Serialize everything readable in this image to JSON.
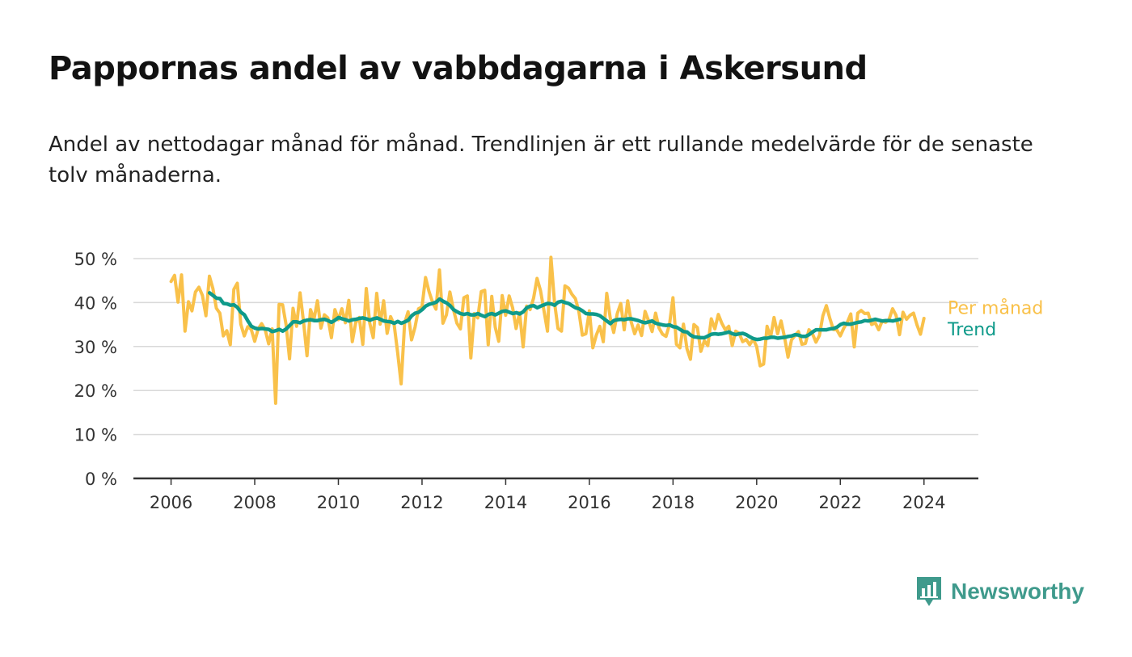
{
  "header": {
    "title": "Pappornas andel av vabbdagarna i Askersund",
    "subtitle": "Andel av nettodagar månad för månad. Trendlinjen är ett rullande medelvärde för de senaste tolv månaderna."
  },
  "brand": {
    "name": "Newsworthy",
    "color": "#3f9a8c",
    "icon": "newsworthy-logo-icon"
  },
  "colors": {
    "monthly": "#f9c14a",
    "trend": "#0f9a8a",
    "grid": "#d9d9d9",
    "axis": "#333333"
  },
  "chart_data": {
    "type": "line",
    "title": "Pappornas andel av vabbdagarna i Askersund",
    "x_unit": "year",
    "xlim": [
      2005.1,
      2025.3
    ],
    "ylim": [
      0,
      50
    ],
    "yticks": [
      0,
      10,
      20,
      30,
      40,
      50
    ],
    "ytick_labels": [
      "0 %",
      "10 %",
      "20 %",
      "30 %",
      "40 %",
      "50 %"
    ],
    "xticks": [
      2006,
      2008,
      2010,
      2012,
      2014,
      2016,
      2018,
      2020,
      2022,
      2024
    ],
    "xtick_labels": [
      "2006",
      "2008",
      "2010",
      "2012",
      "2014",
      "2016",
      "2018",
      "2020",
      "2022",
      "2024"
    ],
    "grid": true,
    "legend": "end-of-line labels, right",
    "series": [
      {
        "name": "Per månad",
        "start": 2006.0,
        "step": 0.08333,
        "values": [
          44.8,
          46.2,
          40.1,
          46.3,
          33.5,
          40.2,
          38.1,
          42.4,
          43.5,
          41.6,
          37.0,
          46.0,
          43.2,
          38.7,
          37.6,
          32.4,
          33.6,
          30.4,
          43.0,
          44.4,
          35.1,
          32.4,
          34.5,
          33.9,
          31.2,
          34.0,
          35.2,
          33.8,
          30.6,
          34.0,
          17.1,
          39.6,
          39.5,
          35.0,
          27.2,
          38.7,
          34.6,
          42.2,
          35.6,
          27.9,
          38.4,
          36.2,
          40.4,
          34.2,
          37.2,
          36.5,
          32.0,
          38.4,
          36.1,
          38.6,
          35.4,
          40.5,
          31.1,
          35.5,
          36.6,
          30.5,
          43.2,
          35.3,
          32.0,
          42.1,
          35.1,
          40.4,
          33.0,
          36.8,
          34.9,
          28.6,
          21.5,
          35.3,
          37.9,
          31.5,
          34.4,
          38.6,
          39.0,
          45.7,
          42.5,
          40.1,
          38.5,
          47.4,
          35.3,
          37.2,
          42.4,
          38.5,
          35.3,
          34.0,
          41.1,
          41.5,
          27.4,
          37.5,
          36.5,
          42.5,
          42.8,
          30.4,
          41.4,
          34.4,
          31.2,
          41.6,
          37.1,
          41.5,
          38.8,
          34.1,
          37.7,
          29.9,
          39.2,
          38.4,
          41.0,
          45.5,
          42.7,
          38.1,
          33.5,
          50.3,
          40.0,
          34.1,
          33.5,
          43.8,
          43.3,
          41.9,
          40.9,
          38.0,
          32.6,
          32.9,
          38.1,
          29.7,
          32.6,
          34.6,
          31.1,
          42.1,
          36.5,
          33.2,
          37.5,
          39.8,
          33.8,
          40.4,
          35.6,
          32.9,
          34.9,
          32.5,
          38.0,
          35.8,
          33.4,
          37.6,
          34.2,
          32.8,
          32.3,
          35.0,
          41.1,
          30.5,
          29.7,
          35.1,
          29.5,
          27.1,
          35.0,
          34.3,
          28.9,
          31.3,
          30.2,
          36.3,
          34.0,
          37.3,
          35.3,
          33.8,
          34.6,
          30.2,
          33.5,
          33.0,
          31.1,
          31.6,
          30.4,
          31.7,
          30.0,
          25.6,
          26.0,
          34.6,
          32.1,
          36.6,
          32.9,
          35.8,
          32.1,
          27.6,
          31.5,
          32.5,
          33.4,
          30.5,
          30.7,
          33.8,
          32.9,
          31.0,
          32.5,
          37.0,
          39.3,
          36.4,
          33.9,
          33.8,
          32.4,
          34.2,
          35.5,
          37.4,
          29.9,
          37.6,
          38.2,
          37.5,
          37.6,
          35.0,
          35.4,
          33.8,
          35.8,
          35.5,
          36.2,
          38.6,
          37.1,
          32.7,
          37.8,
          36.2,
          37.1,
          37.6,
          34.9,
          32.8,
          36.4
        ]
      },
      {
        "name": "Trend",
        "start": 2006.92,
        "step": 0.08333,
        "values": [
          42.2,
          41.6,
          41.0,
          40.9,
          39.8,
          39.7,
          39.4,
          39.5,
          38.9,
          37.8,
          37.2,
          35.8,
          34.6,
          34.2,
          34.0,
          34.1,
          34.0,
          33.9,
          33.4,
          33.6,
          33.9,
          33.5,
          34.0,
          34.8,
          35.6,
          35.6,
          35.4,
          35.8,
          36.0,
          36.1,
          35.9,
          35.9,
          36.1,
          36.2,
          35.9,
          35.5,
          36.0,
          36.6,
          36.3,
          36.1,
          35.8,
          36.1,
          36.2,
          36.4,
          36.5,
          36.3,
          36.0,
          36.3,
          36.5,
          36.2,
          35.8,
          35.7,
          35.6,
          35.3,
          35.7,
          35.3,
          35.6,
          36.0,
          37.0,
          37.6,
          37.8,
          38.4,
          39.2,
          39.6,
          39.8,
          40.1,
          40.8,
          40.3,
          39.9,
          39.3,
          38.4,
          37.9,
          37.5,
          37.3,
          37.5,
          37.2,
          37.2,
          37.5,
          37.1,
          36.8,
          37.3,
          37.5,
          37.2,
          37.6,
          38.0,
          38.1,
          37.8,
          37.5,
          37.7,
          37.4,
          37.9,
          38.8,
          39.2,
          39.3,
          38.8,
          39.2,
          39.5,
          39.8,
          39.7,
          39.4,
          40.1,
          40.3,
          40.0,
          39.8,
          39.3,
          38.8,
          38.6,
          38.1,
          37.5,
          37.4,
          37.4,
          37.3,
          37.0,
          36.4,
          35.8,
          35.2,
          35.9,
          36.1,
          36.2,
          36.1,
          36.3,
          36.3,
          36.1,
          35.9,
          35.6,
          35.4,
          35.6,
          35.8,
          35.3,
          35.1,
          34.9,
          34.8,
          34.9,
          34.5,
          34.4,
          33.9,
          33.4,
          33.3,
          32.6,
          32.2,
          32.1,
          32.0,
          32.0,
          32.4,
          32.8,
          32.9,
          32.8,
          32.9,
          33.1,
          33.3,
          32.9,
          32.7,
          32.9,
          33.0,
          32.7,
          32.2,
          31.8,
          31.6,
          31.7,
          31.9,
          31.9,
          32.1,
          32.1,
          31.9,
          32.0,
          32.1,
          32.3,
          32.4,
          32.7,
          32.6,
          32.3,
          32.3,
          32.7,
          33.3,
          33.8,
          33.8,
          33.8,
          33.8,
          34.0,
          34.1,
          34.4,
          35.0,
          35.3,
          35.1,
          35.1,
          35.3,
          35.5,
          35.6,
          35.9,
          35.8,
          36.0,
          36.2,
          36.0,
          35.8,
          35.9,
          35.9,
          35.8,
          36.0,
          36.2
        ]
      }
    ],
    "series_labels": [
      "Per månad",
      "Trend"
    ]
  }
}
